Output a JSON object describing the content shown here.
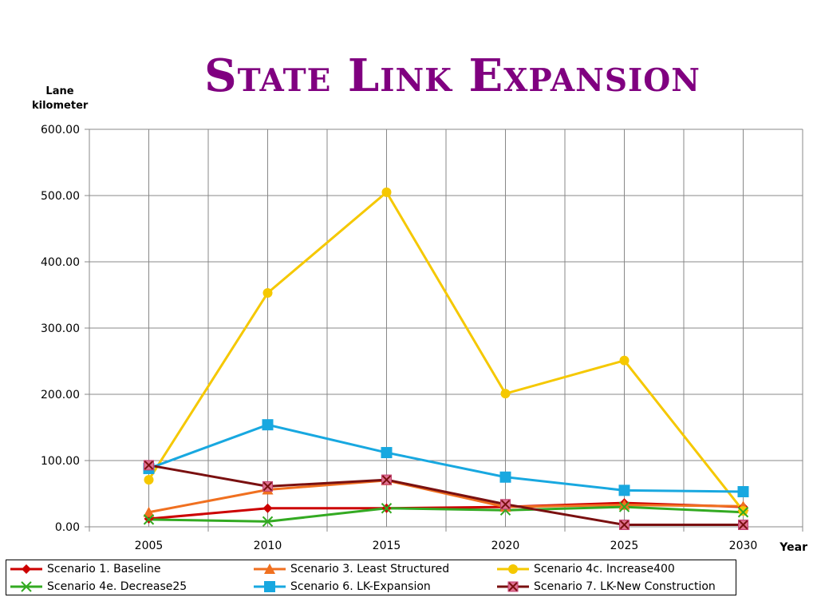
{
  "chart_data": {
    "type": "line",
    "title": "State  Link Expansion",
    "ylabel": "Lane kilometer",
    "xlabel": "Year",
    "x": [
      "2005",
      "2010",
      "2015",
      "2020",
      "2025",
      "2030"
    ],
    "ylim": [
      0,
      600
    ],
    "yticks": [
      "0.00",
      "100.00",
      "200.00",
      "300.00",
      "400.00",
      "500.00",
      "600.00"
    ],
    "grid": true,
    "legend_position": "bottom",
    "series": [
      {
        "name": "Scenario 1. Baseline",
        "color": "#CC0000",
        "marker": "diamond",
        "values": [
          12,
          28,
          28,
          30,
          36,
          30
        ]
      },
      {
        "name": "Scenario 3. Least Structured",
        "color": "#F07020",
        "marker": "triangle",
        "values": [
          22,
          56,
          70,
          30,
          33,
          31
        ]
      },
      {
        "name": "Scenario 4c. Increase400",
        "color": "#F5C800",
        "marker": "circle",
        "values": [
          71,
          353,
          505,
          201,
          251,
          24
        ]
      },
      {
        "name": "Scenario 4e. Decrease25",
        "color": "#33AA22",
        "marker": "x",
        "values": [
          11,
          8,
          28,
          25,
          30,
          22
        ]
      },
      {
        "name": "Scenario 6. LK-Expansion",
        "color": "#18A8E0",
        "marker": "square",
        "values": [
          88,
          154,
          112,
          75,
          55,
          53
        ]
      },
      {
        "name": "Scenario 7. LK-New Construction",
        "color": "#7A1010",
        "marker": "xsquare",
        "values": [
          93,
          61,
          71,
          34,
          3,
          3
        ]
      }
    ]
  }
}
